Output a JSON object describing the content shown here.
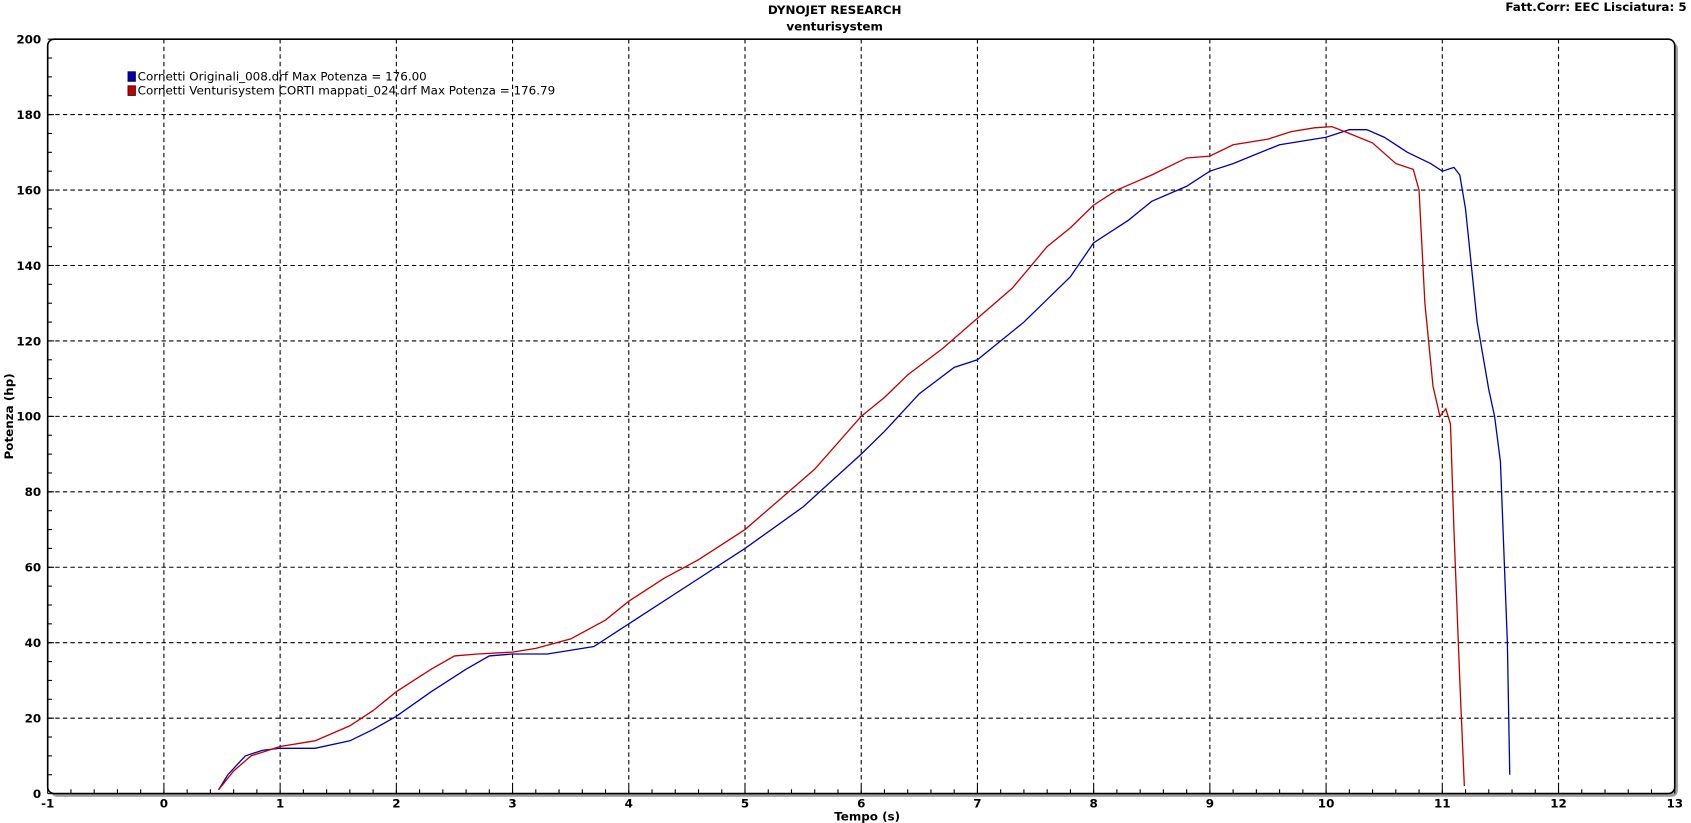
{
  "header": {
    "title": "DYNOJET RESEARCH",
    "subtitle": "venturisystem",
    "info": "Fatt.Corr: EEC  Lisciatura: 5"
  },
  "chart_data": {
    "type": "line",
    "title": "DYNOJET RESEARCH",
    "subtitle": "venturisystem",
    "xlabel": "Tempo (s)",
    "ylabel": "Potenza (hp)",
    "xlim": [
      -1,
      13
    ],
    "ylim": [
      0,
      200
    ],
    "xticks": [
      -1,
      0,
      1,
      2,
      3,
      4,
      5,
      6,
      7,
      8,
      9,
      10,
      11,
      12,
      13
    ],
    "yticks": [
      0,
      20,
      40,
      60,
      80,
      100,
      120,
      140,
      160,
      180,
      200
    ],
    "x_minor_step": 0.2,
    "y_minor_step": 5,
    "grid": true,
    "legend_placement": "top-left",
    "series": [
      {
        "name": "Cornetti Originali_008.drf Max Potenza = 176.00",
        "color": "#0000b0",
        "points": [
          [
            0.47,
            1
          ],
          [
            0.55,
            5
          ],
          [
            0.7,
            10
          ],
          [
            0.85,
            11.5
          ],
          [
            1.0,
            12
          ],
          [
            1.3,
            12
          ],
          [
            1.6,
            14
          ],
          [
            1.8,
            17
          ],
          [
            2.0,
            20.5
          ],
          [
            2.3,
            27
          ],
          [
            2.6,
            33
          ],
          [
            2.8,
            36.5
          ],
          [
            3.0,
            37
          ],
          [
            3.3,
            37
          ],
          [
            3.7,
            39
          ],
          [
            4.0,
            45
          ],
          [
            4.5,
            55
          ],
          [
            5.0,
            65
          ],
          [
            5.5,
            76
          ],
          [
            6.0,
            90
          ],
          [
            6.2,
            96
          ],
          [
            6.5,
            106
          ],
          [
            6.8,
            113
          ],
          [
            7.0,
            115
          ],
          [
            7.4,
            125
          ],
          [
            7.6,
            131
          ],
          [
            7.8,
            137
          ],
          [
            8.0,
            146
          ],
          [
            8.3,
            152
          ],
          [
            8.5,
            157
          ],
          [
            8.8,
            161
          ],
          [
            9.0,
            165
          ],
          [
            9.2,
            167
          ],
          [
            9.4,
            169.5
          ],
          [
            9.6,
            172
          ],
          [
            9.9,
            173.5
          ],
          [
            10.0,
            174
          ],
          [
            10.2,
            176
          ],
          [
            10.35,
            176
          ],
          [
            10.5,
            174
          ],
          [
            10.7,
            170
          ],
          [
            10.9,
            167
          ],
          [
            11.0,
            165
          ],
          [
            11.1,
            166
          ],
          [
            11.15,
            164
          ],
          [
            11.2,
            155
          ],
          [
            11.3,
            125
          ],
          [
            11.4,
            107
          ],
          [
            11.45,
            100
          ],
          [
            11.5,
            88
          ],
          [
            11.56,
            40
          ],
          [
            11.58,
            5
          ]
        ]
      },
      {
        "name": "Cornetti Venturisystem CORTI mappati_024.drf Max Potenza = 176.79",
        "color": "#c00000",
        "points": [
          [
            0.47,
            1
          ],
          [
            0.6,
            6
          ],
          [
            0.75,
            10
          ],
          [
            1.0,
            12.5
          ],
          [
            1.3,
            14
          ],
          [
            1.6,
            18
          ],
          [
            1.8,
            22
          ],
          [
            2.0,
            27
          ],
          [
            2.3,
            33
          ],
          [
            2.5,
            36.5
          ],
          [
            2.7,
            37
          ],
          [
            3.0,
            37.5
          ],
          [
            3.2,
            38.5
          ],
          [
            3.5,
            41
          ],
          [
            3.8,
            46
          ],
          [
            4.0,
            51
          ],
          [
            4.3,
            57
          ],
          [
            4.6,
            62
          ],
          [
            5.0,
            70
          ],
          [
            5.3,
            78
          ],
          [
            5.6,
            86
          ],
          [
            6.0,
            100
          ],
          [
            6.2,
            105
          ],
          [
            6.4,
            111
          ],
          [
            6.7,
            118
          ],
          [
            7.0,
            126
          ],
          [
            7.3,
            134
          ],
          [
            7.6,
            145
          ],
          [
            7.8,
            150
          ],
          [
            8.0,
            156
          ],
          [
            8.2,
            160
          ],
          [
            8.5,
            164
          ],
          [
            8.7,
            167
          ],
          [
            8.8,
            168.5
          ],
          [
            9.0,
            169
          ],
          [
            9.2,
            172
          ],
          [
            9.5,
            173.5
          ],
          [
            9.7,
            175.5
          ],
          [
            9.9,
            176.5
          ],
          [
            10.05,
            176.8
          ],
          [
            10.2,
            175
          ],
          [
            10.4,
            172.5
          ],
          [
            10.6,
            167
          ],
          [
            10.75,
            165.5
          ],
          [
            10.8,
            160
          ],
          [
            10.85,
            130
          ],
          [
            10.92,
            108
          ],
          [
            10.98,
            100
          ],
          [
            11.03,
            102
          ],
          [
            11.07,
            98
          ],
          [
            11.1,
            70
          ],
          [
            11.15,
            30
          ],
          [
            11.19,
            2
          ]
        ]
      }
    ]
  }
}
